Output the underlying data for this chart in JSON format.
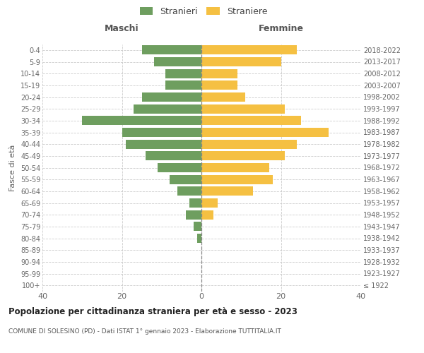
{
  "age_groups": [
    "100+",
    "95-99",
    "90-94",
    "85-89",
    "80-84",
    "75-79",
    "70-74",
    "65-69",
    "60-64",
    "55-59",
    "50-54",
    "45-49",
    "40-44",
    "35-39",
    "30-34",
    "25-29",
    "20-24",
    "15-19",
    "10-14",
    "5-9",
    "0-4"
  ],
  "birth_years": [
    "≤ 1922",
    "1923-1927",
    "1928-1932",
    "1933-1937",
    "1938-1942",
    "1943-1947",
    "1948-1952",
    "1953-1957",
    "1958-1962",
    "1963-1967",
    "1968-1972",
    "1973-1977",
    "1978-1982",
    "1983-1987",
    "1988-1992",
    "1993-1997",
    "1998-2002",
    "2003-2007",
    "2008-2012",
    "2013-2017",
    "2018-2022"
  ],
  "males": [
    0,
    0,
    0,
    0,
    1,
    2,
    4,
    3,
    6,
    8,
    11,
    14,
    19,
    20,
    30,
    17,
    15,
    9,
    9,
    12,
    15
  ],
  "females": [
    0,
    0,
    0,
    0,
    0,
    0,
    3,
    4,
    13,
    18,
    17,
    21,
    24,
    32,
    25,
    21,
    11,
    9,
    9,
    20,
    24
  ],
  "male_color": "#6e9e5f",
  "female_color": "#f5c042",
  "bg_color": "#ffffff",
  "grid_color": "#cccccc",
  "title": "Popolazione per cittadinanza straniera per età e sesso - 2023",
  "subtitle": "COMUNE DI SOLESINO (PD) - Dati ISTAT 1° gennaio 2023 - Elaborazione TUTTITALIA.IT",
  "ylabel_left": "Fasce di età",
  "legend_males": "Stranieri",
  "legend_females": "Straniere",
  "header_left": "Maschi",
  "header_right": "Femmine",
  "xlim": 40
}
